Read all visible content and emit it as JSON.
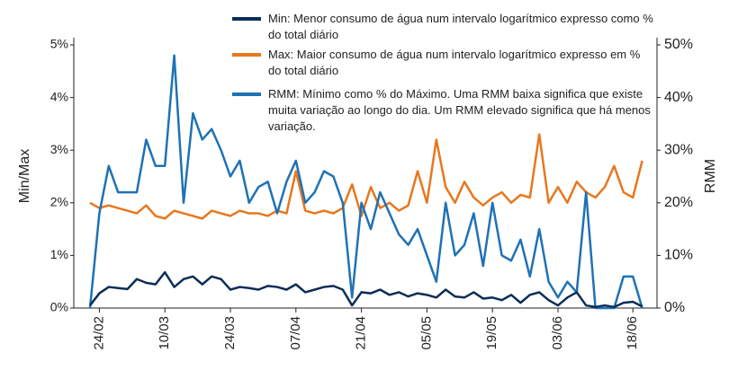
{
  "chart_data": {
    "type": "line",
    "y_label": "Min/Max",
    "y2_label": "RMM",
    "categories": [
      null,
      "24/02",
      null,
      null,
      null,
      null,
      null,
      null,
      "10/03",
      null,
      null,
      null,
      null,
      null,
      null,
      "24/03",
      null,
      null,
      null,
      null,
      null,
      null,
      "07/04",
      null,
      null,
      null,
      null,
      null,
      null,
      "21/04",
      null,
      null,
      null,
      null,
      null,
      null,
      "05/05",
      null,
      null,
      null,
      null,
      null,
      null,
      "19/05",
      null,
      null,
      null,
      null,
      null,
      null,
      "03/06",
      null,
      null,
      null,
      null,
      null,
      null,
      null,
      "18/06",
      null
    ],
    "series": [
      {
        "name": "Min: Menor consumo de água num intervalo logarítmico expresso como % do total diário",
        "color": "#0b2d57",
        "axis": "y",
        "values": [
          0.05,
          0.28,
          0.4,
          0.38,
          0.36,
          0.55,
          0.48,
          0.45,
          0.68,
          0.4,
          0.55,
          0.6,
          0.45,
          0.6,
          0.55,
          0.35,
          0.4,
          0.38,
          0.35,
          0.42,
          0.4,
          0.35,
          0.45,
          0.3,
          0.35,
          0.4,
          0.42,
          0.35,
          0.05,
          0.3,
          0.28,
          0.35,
          0.25,
          0.3,
          0.22,
          0.28,
          0.25,
          0.2,
          0.35,
          0.22,
          0.2,
          0.3,
          0.18,
          0.2,
          0.15,
          0.25,
          0.1,
          0.25,
          0.3,
          0.15,
          0.05,
          0.2,
          0.3,
          0.05,
          0.02,
          0.05,
          0.02,
          0.1,
          0.12,
          0.03
        ]
      },
      {
        "name": "Max: Maior consumo de água num intervalo logarítmico expresso em % do total diário",
        "color": "#e8771e",
        "axis": "y",
        "values": [
          2.0,
          1.9,
          1.95,
          1.9,
          1.85,
          1.8,
          1.95,
          1.75,
          1.7,
          1.85,
          1.8,
          1.75,
          1.7,
          1.85,
          1.8,
          1.75,
          1.85,
          1.8,
          1.8,
          1.75,
          1.85,
          1.8,
          2.6,
          1.85,
          1.8,
          1.85,
          1.8,
          1.9,
          2.35,
          1.75,
          2.3,
          1.9,
          2.0,
          1.85,
          1.95,
          2.6,
          2.0,
          3.2,
          2.3,
          2.0,
          2.4,
          2.1,
          1.95,
          2.1,
          2.2,
          2.0,
          2.15,
          2.1,
          3.3,
          2.0,
          2.3,
          2.0,
          2.4,
          2.2,
          2.1,
          2.3,
          2.7,
          2.2,
          2.1,
          2.8
        ]
      },
      {
        "name": "RMM: Mínimo como % do Máximo. Uma RMM baixa significa que existe muita variação ao longo do dia. Um RMM elevado significa que há menos variação.",
        "color": "#1f72b4",
        "axis": "y2",
        "values": [
          0,
          18,
          27,
          22,
          22,
          22,
          32,
          27,
          27,
          48,
          20,
          37,
          32,
          34,
          30,
          25,
          28,
          20,
          23,
          24,
          18,
          24,
          28,
          20,
          22,
          26,
          25,
          20,
          2,
          20,
          15,
          22,
          18,
          14,
          12,
          15,
          10,
          5,
          20,
          10,
          12,
          18,
          8,
          20,
          10,
          9,
          13,
          6,
          15,
          5,
          2,
          5,
          3,
          22,
          0,
          0,
          0,
          6,
          6,
          0
        ]
      }
    ],
    "ylim": [
      0,
      5
    ],
    "yticks": [
      {
        "value": 0,
        "label": "0%"
      },
      {
        "value": 1,
        "label": "1%"
      },
      {
        "value": 2,
        "label": "2%"
      },
      {
        "value": 3,
        "label": "3%"
      },
      {
        "value": 4,
        "label": "4%"
      },
      {
        "value": 5,
        "label": "5%"
      }
    ],
    "y2lim": [
      0,
      50
    ],
    "y2ticks": [
      {
        "value": 0,
        "label": "0%"
      },
      {
        "value": 10,
        "label": "10%"
      },
      {
        "value": 20,
        "label": "20%"
      },
      {
        "value": 30,
        "label": "30%"
      },
      {
        "value": 40,
        "label": "40%"
      },
      {
        "value": 50,
        "label": "50%"
      }
    ],
    "legend": "top",
    "grid": false
  }
}
